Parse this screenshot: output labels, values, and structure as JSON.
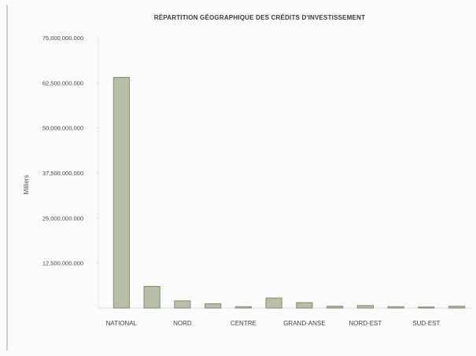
{
  "chart_data": {
    "type": "bar",
    "title": "RÉPARTITION GÉOGRAPHIQUE DES CRÉDITS D'INVESTISSEMENT",
    "xlabel": "",
    "ylabel": "Milliers",
    "ylim": [
      0,
      75000000
    ],
    "y_ticks": [
      "75,000,000.000",
      "62,500,000.000",
      "50,000,000.000",
      "37,500,000.000",
      "25,000,000.000",
      "12,500,000.000"
    ],
    "categories": [
      "NATIONAL",
      "",
      "NORD",
      "",
      "CENTRE",
      "",
      "GRAND-ANSE",
      "",
      "NORD-EST",
      "",
      "SUD-EST",
      ""
    ],
    "x_tick_labels": [
      "NATIONAL",
      "NORD",
      "CENTRE",
      "GRAND-ANSE",
      "NORD-EST",
      "SUD-EST"
    ],
    "series": [
      {
        "values": [
          64000000,
          6000000,
          2000000,
          1200000,
          400000,
          2800000,
          1500000,
          500000,
          700000,
          400000,
          300000,
          500000
        ]
      }
    ],
    "bar_color": "#b6c0a6",
    "bar_stroke": "#7f8a72",
    "grid": false,
    "legend": "none"
  }
}
